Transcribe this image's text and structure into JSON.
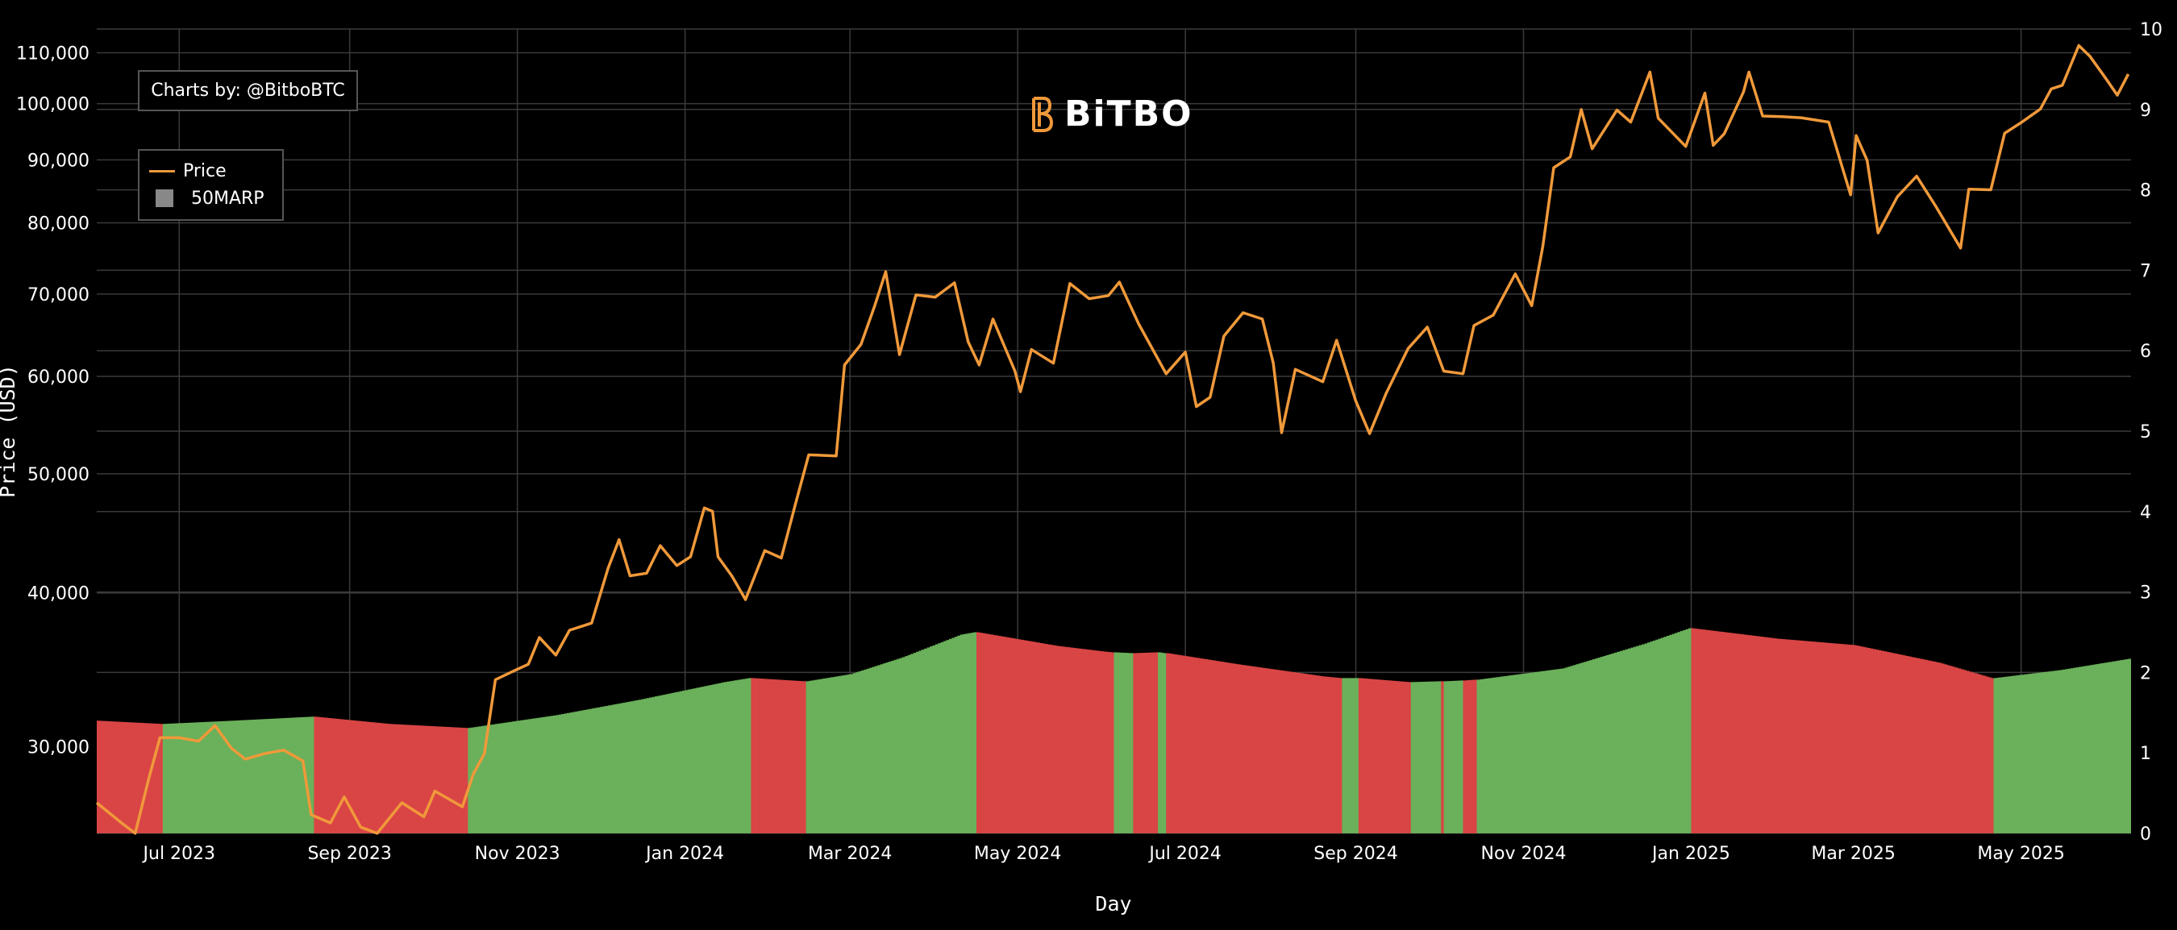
{
  "credit": "Charts by: @BitboBTC",
  "logo": {
    "text": "BiTBO",
    "name": "bitbo-logo"
  },
  "colors": {
    "price": "#f0993a",
    "up": "#6bb05a",
    "down": "#d94545",
    "legend_marp": "#888888",
    "background": "#000000",
    "grid": "#3a3a3a"
  },
  "chart_data": {
    "type": "line",
    "xlabel": "Day",
    "ylabel": "Price (USD)",
    "y_scale": "log",
    "ylim": [
      25500,
      115000
    ],
    "y2lim": [
      0,
      10
    ],
    "xlim": [
      "2023-06-01",
      "2025-06-10"
    ],
    "grid": true,
    "legend_position": "top-left",
    "legend": [
      "Price",
      "50MARP"
    ],
    "x_ticks": [
      {
        "date": "2023-07-01",
        "label": "Jul 2023"
      },
      {
        "date": "2023-09-01",
        "label": "Sep 2023"
      },
      {
        "date": "2023-11-01",
        "label": "Nov 2023"
      },
      {
        "date": "2024-01-01",
        "label": "Jan 2024"
      },
      {
        "date": "2024-03-01",
        "label": "Mar 2024"
      },
      {
        "date": "2024-05-01",
        "label": "May 2024"
      },
      {
        "date": "2024-07-01",
        "label": "Jul 2024"
      },
      {
        "date": "2024-09-01",
        "label": "Sep 2024"
      },
      {
        "date": "2024-11-01",
        "label": "Nov 2024"
      },
      {
        "date": "2025-01-01",
        "label": "Jan 2025"
      },
      {
        "date": "2025-03-01",
        "label": "Mar 2025"
      },
      {
        "date": "2025-05-01",
        "label": "May 2025"
      }
    ],
    "y_ticks": [
      {
        "value": 30000,
        "label": "30,000"
      },
      {
        "value": 40000,
        "label": "40,000"
      },
      {
        "value": 50000,
        "label": "50,000"
      },
      {
        "value": 60000,
        "label": "60,000"
      },
      {
        "value": 70000,
        "label": "70,000"
      },
      {
        "value": 80000,
        "label": "80,000"
      },
      {
        "value": 90000,
        "label": "90,000"
      },
      {
        "value": 100000,
        "label": "100,000"
      },
      {
        "value": 110000,
        "label": "110,000"
      }
    ],
    "y2_ticks": [
      "0",
      "1",
      "2",
      "3",
      "4",
      "5",
      "6",
      "7",
      "8",
      "9",
      "10"
    ],
    "series": [
      {
        "name": "Price",
        "axis": "y",
        "points": [
          [
            "2023-06-01",
            27000
          ],
          [
            "2023-06-10",
            26000
          ],
          [
            "2023-06-15",
            25500
          ],
          [
            "2023-06-20",
            28300
          ],
          [
            "2023-06-24",
            30500
          ],
          [
            "2023-07-01",
            30500
          ],
          [
            "2023-07-08",
            30300
          ],
          [
            "2023-07-14",
            31200
          ],
          [
            "2023-07-20",
            29900
          ],
          [
            "2023-07-25",
            29300
          ],
          [
            "2023-08-01",
            29600
          ],
          [
            "2023-08-08",
            29800
          ],
          [
            "2023-08-15",
            29200
          ],
          [
            "2023-08-18",
            26400
          ],
          [
            "2023-08-25",
            26000
          ],
          [
            "2023-08-30",
            27300
          ],
          [
            "2023-09-05",
            25800
          ],
          [
            "2023-09-11",
            25200
          ],
          [
            "2023-09-20",
            27000
          ],
          [
            "2023-09-28",
            26300
          ],
          [
            "2023-10-02",
            27600
          ],
          [
            "2023-10-12",
            26800
          ],
          [
            "2023-10-16",
            28500
          ],
          [
            "2023-10-20",
            29600
          ],
          [
            "2023-10-24",
            34000
          ],
          [
            "2023-10-30",
            34500
          ],
          [
            "2023-11-05",
            35000
          ],
          [
            "2023-11-09",
            36800
          ],
          [
            "2023-11-15",
            35600
          ],
          [
            "2023-11-20",
            37300
          ],
          [
            "2023-11-28",
            37800
          ],
          [
            "2023-12-04",
            41900
          ],
          [
            "2023-12-08",
            44200
          ],
          [
            "2023-12-12",
            41300
          ],
          [
            "2023-12-18",
            41500
          ],
          [
            "2023-12-23",
            43700
          ],
          [
            "2023-12-29",
            42100
          ],
          [
            "2024-01-03",
            42800
          ],
          [
            "2024-01-08",
            46900
          ],
          [
            "2024-01-11",
            46600
          ],
          [
            "2024-01-13",
            42800
          ],
          [
            "2024-01-18",
            41300
          ],
          [
            "2024-01-23",
            39500
          ],
          [
            "2024-01-30",
            43300
          ],
          [
            "2024-02-05",
            42700
          ],
          [
            "2024-02-10",
            47100
          ],
          [
            "2024-02-15",
            51800
          ],
          [
            "2024-02-25",
            51700
          ],
          [
            "2024-02-28",
            61300
          ],
          [
            "2024-03-05",
            63700
          ],
          [
            "2024-03-10",
            68500
          ],
          [
            "2024-03-14",
            73000
          ],
          [
            "2024-03-19",
            62500
          ],
          [
            "2024-03-25",
            69900
          ],
          [
            "2024-04-01",
            69600
          ],
          [
            "2024-04-08",
            71500
          ],
          [
            "2024-04-13",
            64000
          ],
          [
            "2024-04-17",
            61300
          ],
          [
            "2024-04-22",
            66800
          ],
          [
            "2024-04-30",
            60600
          ],
          [
            "2024-05-02",
            58300
          ],
          [
            "2024-05-06",
            63100
          ],
          [
            "2024-05-14",
            61500
          ],
          [
            "2024-05-20",
            71400
          ],
          [
            "2024-05-27",
            69400
          ],
          [
            "2024-06-03",
            69800
          ],
          [
            "2024-06-07",
            71600
          ],
          [
            "2024-06-14",
            66200
          ],
          [
            "2024-06-24",
            60300
          ],
          [
            "2024-07-01",
            62800
          ],
          [
            "2024-07-05",
            56700
          ],
          [
            "2024-07-10",
            57700
          ],
          [
            "2024-07-15",
            64700
          ],
          [
            "2024-07-22",
            67600
          ],
          [
            "2024-07-29",
            66800
          ],
          [
            "2024-08-02",
            61500
          ],
          [
            "2024-08-05",
            54000
          ],
          [
            "2024-08-10",
            60800
          ],
          [
            "2024-08-20",
            59400
          ],
          [
            "2024-08-25",
            64200
          ],
          [
            "2024-09-01",
            57300
          ],
          [
            "2024-09-06",
            53900
          ],
          [
            "2024-09-12",
            58100
          ],
          [
            "2024-09-20",
            63200
          ],
          [
            "2024-09-27",
            65800
          ],
          [
            "2024-10-03",
            60600
          ],
          [
            "2024-10-10",
            60300
          ],
          [
            "2024-10-14",
            66000
          ],
          [
            "2024-10-21",
            67300
          ],
          [
            "2024-10-29",
            72700
          ],
          [
            "2024-11-04",
            68500
          ],
          [
            "2024-11-08",
            76500
          ],
          [
            "2024-11-12",
            88700
          ],
          [
            "2024-11-18",
            90500
          ],
          [
            "2024-11-22",
            98900
          ],
          [
            "2024-11-26",
            91900
          ],
          [
            "2024-12-05",
            98800
          ],
          [
            "2024-12-10",
            96600
          ],
          [
            "2024-12-17",
            106100
          ],
          [
            "2024-12-20",
            97300
          ],
          [
            "2024-12-30",
            92300
          ],
          [
            "2025-01-06",
            102000
          ],
          [
            "2025-01-09",
            92500
          ],
          [
            "2025-01-13",
            94500
          ],
          [
            "2025-01-20",
            102200
          ],
          [
            "2025-01-22",
            106100
          ],
          [
            "2025-01-27",
            97700
          ],
          [
            "2025-02-03",
            97600
          ],
          [
            "2025-02-10",
            97400
          ],
          [
            "2025-02-20",
            96600
          ],
          [
            "2025-02-25",
            88700
          ],
          [
            "2025-02-28",
            84300
          ],
          [
            "2025-03-02",
            94200
          ],
          [
            "2025-03-06",
            89900
          ],
          [
            "2025-03-10",
            78500
          ],
          [
            "2025-03-17",
            84000
          ],
          [
            "2025-03-24",
            87300
          ],
          [
            "2025-03-31",
            82500
          ],
          [
            "2025-04-06",
            78300
          ],
          [
            "2025-04-09",
            76300
          ],
          [
            "2025-04-12",
            85200
          ],
          [
            "2025-04-20",
            85100
          ],
          [
            "2025-04-25",
            94600
          ],
          [
            "2025-05-01",
            96500
          ],
          [
            "2025-05-08",
            99000
          ],
          [
            "2025-05-12",
            102800
          ],
          [
            "2025-05-16",
            103500
          ],
          [
            "2025-05-22",
            111500
          ],
          [
            "2025-05-26",
            109300
          ],
          [
            "2025-06-01",
            104700
          ],
          [
            "2025-06-05",
            101600
          ],
          [
            "2025-06-09",
            105700
          ]
        ]
      },
      {
        "name": "50MARP",
        "axis": "y2",
        "type": "bar",
        "points": [
          [
            "2023-06-01",
            1.4,
            "down"
          ],
          [
            "2023-06-24",
            1.36,
            "down"
          ],
          [
            "2023-06-25",
            1.36,
            "up"
          ],
          [
            "2023-07-20",
            1.4,
            "up"
          ],
          [
            "2023-08-18",
            1.45,
            "up"
          ],
          [
            "2023-08-19",
            1.45,
            "down"
          ],
          [
            "2023-09-15",
            1.36,
            "down"
          ],
          [
            "2023-10-13",
            1.31,
            "down"
          ],
          [
            "2023-10-14",
            1.31,
            "up"
          ],
          [
            "2023-11-15",
            1.47,
            "up"
          ],
          [
            "2023-12-15",
            1.66,
            "up"
          ],
          [
            "2024-01-15",
            1.88,
            "up"
          ],
          [
            "2024-01-24",
            1.93,
            "up"
          ],
          [
            "2024-01-25",
            1.93,
            "down"
          ],
          [
            "2024-02-13",
            1.89,
            "down"
          ],
          [
            "2024-02-14",
            1.89,
            "up"
          ],
          [
            "2024-03-01",
            1.98,
            "up"
          ],
          [
            "2024-03-20",
            2.19,
            "up"
          ],
          [
            "2024-04-10",
            2.47,
            "up"
          ],
          [
            "2024-04-15",
            2.5,
            "up"
          ],
          [
            "2024-04-16",
            2.5,
            "down"
          ],
          [
            "2024-05-15",
            2.33,
            "down"
          ],
          [
            "2024-06-01",
            2.26,
            "down"
          ],
          [
            "2024-06-04",
            2.25,
            "down"
          ],
          [
            "2024-06-05",
            2.25,
            "up"
          ],
          [
            "2024-06-11",
            2.24,
            "up"
          ],
          [
            "2024-06-12",
            2.24,
            "down"
          ],
          [
            "2024-06-20",
            2.25,
            "down"
          ],
          [
            "2024-06-21",
            2.25,
            "up"
          ],
          [
            "2024-06-23",
            2.24,
            "up"
          ],
          [
            "2024-06-24",
            2.24,
            "down"
          ],
          [
            "2024-07-20",
            2.1,
            "down"
          ],
          [
            "2024-08-20",
            1.95,
            "down"
          ],
          [
            "2024-08-26",
            1.93,
            "down"
          ],
          [
            "2024-08-27",
            1.93,
            "up"
          ],
          [
            "2024-09-01",
            1.93,
            "up"
          ],
          [
            "2024-09-02",
            1.93,
            "down"
          ],
          [
            "2024-09-20",
            1.88,
            "down"
          ],
          [
            "2024-09-21",
            1.88,
            "up"
          ],
          [
            "2024-10-01",
            1.89,
            "up"
          ],
          [
            "2024-10-02",
            1.89,
            "down"
          ],
          [
            "2024-10-03",
            1.89,
            "up"
          ],
          [
            "2024-10-09",
            1.9,
            "up"
          ],
          [
            "2024-10-10",
            1.9,
            "down"
          ],
          [
            "2024-10-14",
            1.91,
            "down"
          ],
          [
            "2024-10-15",
            1.91,
            "up"
          ],
          [
            "2024-11-15",
            2.05,
            "up"
          ],
          [
            "2024-12-15",
            2.36,
            "up"
          ],
          [
            "2024-12-31",
            2.55,
            "up"
          ],
          [
            "2025-01-01",
            2.55,
            "down"
          ],
          [
            "2025-02-01",
            2.42,
            "down"
          ],
          [
            "2025-03-01",
            2.34,
            "down"
          ],
          [
            "2025-04-01",
            2.12,
            "down"
          ],
          [
            "2025-04-20",
            1.93,
            "down"
          ],
          [
            "2025-04-21",
            1.93,
            "up"
          ],
          [
            "2025-05-15",
            2.03,
            "up"
          ],
          [
            "2025-06-09",
            2.17,
            "up"
          ]
        ]
      }
    ]
  }
}
